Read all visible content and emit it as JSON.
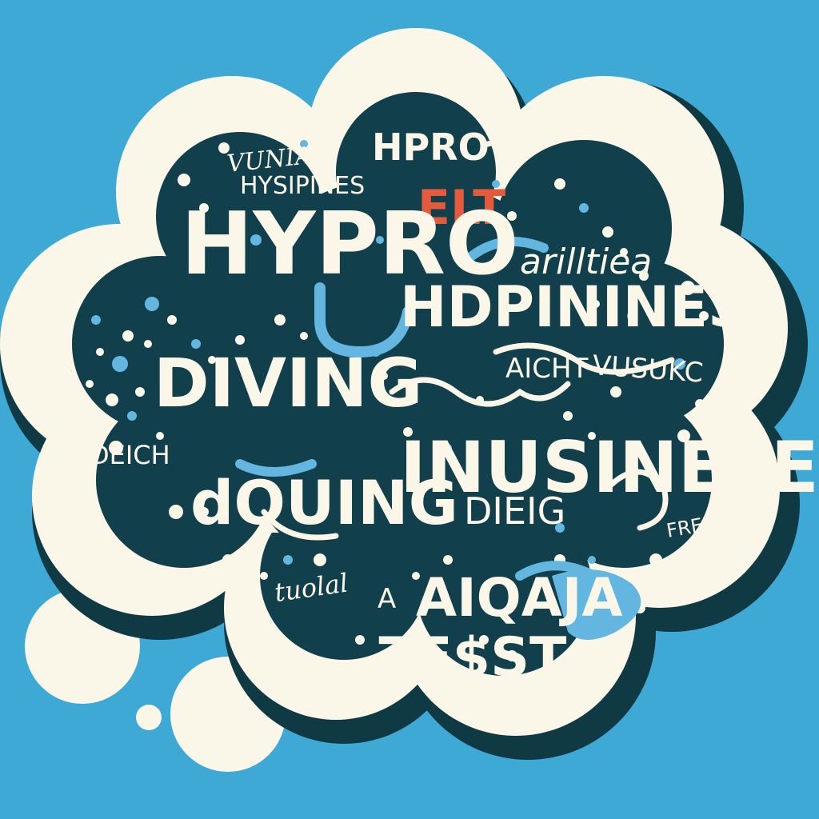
{
  "colors": {
    "background": "#3fa9d6",
    "cloud_outer": "#fbf7e8",
    "cloud_shadow": "#0f3a44",
    "cloud_inner": "#123f4c",
    "word_cream": "#fbf7e8",
    "word_blue": "#62b6e0",
    "word_red": "#e65a3c"
  },
  "words": {
    "vuniao": "VUNIAO",
    "hypro_small": "HPRO",
    "hysipines": "HYSIPINES",
    "elt": "ELT",
    "hypro_big": "HYPRO",
    "arilltiea": "arilltiea",
    "hdpinines": "HDPININES",
    "aicht": "AICHT",
    "vusukc": "VUSUKC",
    "diving": "DIVING",
    "deich": "DEICH",
    "amp": "&",
    "dquing": "dQUING",
    "inusinele": "INUSINELE",
    "dieig": "DIEIG",
    "freed": "FREED",
    "tuolal": "tuolal",
    "a_small": "A",
    "aiqaja": "AIQAJA",
    "zesst": "ZE$ST"
  }
}
